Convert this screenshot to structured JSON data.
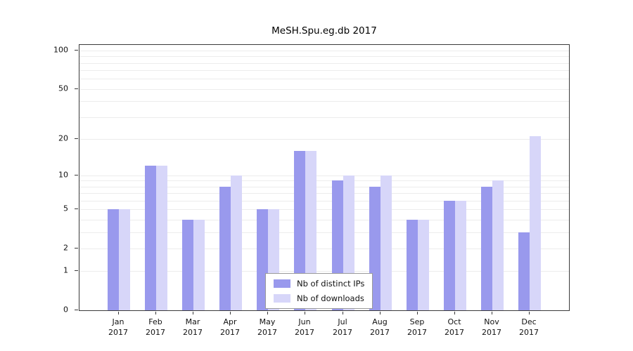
{
  "chart_data": {
    "type": "bar",
    "title": "MeSH.Spu.eg.db 2017",
    "year_label": "2017",
    "categories": [
      "Jan",
      "Feb",
      "Mar",
      "Apr",
      "May",
      "Jun",
      "Jul",
      "Aug",
      "Sep",
      "Oct",
      "Nov",
      "Dec"
    ],
    "series": [
      {
        "name": "Nb of distinct IPs",
        "color": "#9999ed",
        "values": [
          5,
          12,
          4,
          8,
          5,
          16,
          9,
          8,
          4,
          6,
          8,
          3
        ]
      },
      {
        "name": "Nb of downloads",
        "color": "#d7d6f9",
        "values": [
          5,
          12,
          4,
          10,
          5,
          16,
          10,
          10,
          4,
          6,
          9,
          21
        ]
      }
    ],
    "xlabel": "",
    "ylabel": "",
    "yticks": [
      "100",
      "50",
      "20",
      "10",
      "5",
      "2",
      "1",
      "0"
    ],
    "grid_values": [
      1,
      2,
      3,
      4,
      5,
      6,
      7,
      8,
      9,
      10,
      20,
      30,
      40,
      50,
      60,
      70,
      80,
      90,
      100
    ],
    "ylim": [
      0,
      100
    ],
    "yscale": "log1p",
    "grid": true,
    "legend_position": "bottom-center"
  }
}
